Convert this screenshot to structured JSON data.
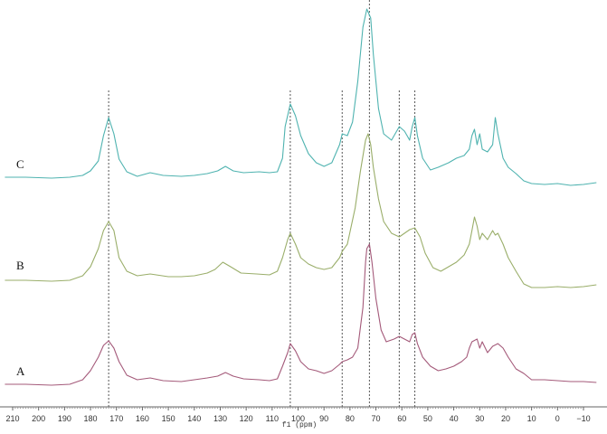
{
  "chart_data": {
    "type": "line",
    "title": "",
    "xlabel": "f1 (ppm)",
    "ylabel": "",
    "x_reversed": true,
    "xlim": [
      -15,
      213
    ],
    "x_ticks": [
      210,
      200,
      190,
      180,
      170,
      160,
      150,
      140,
      130,
      120,
      110,
      100,
      90,
      80,
      70,
      60,
      50,
      40,
      30,
      20,
      10,
      0,
      -10
    ],
    "grid": false,
    "legend": "none",
    "reference_lines_ppm": [
      173,
      103,
      83,
      72.5,
      61,
      55
    ],
    "series": [
      {
        "name": "C",
        "color": "#4fb3b0",
        "baseline": 196,
        "points": [
          [
            213,
            196
          ],
          [
            205,
            196
          ],
          [
            195,
            197
          ],
          [
            188,
            196
          ],
          [
            183,
            194
          ],
          [
            180,
            189
          ],
          [
            177,
            178
          ],
          [
            175,
            150
          ],
          [
            173,
            130
          ],
          [
            171,
            148
          ],
          [
            169,
            176
          ],
          [
            166,
            190
          ],
          [
            162,
            195
          ],
          [
            157,
            191
          ],
          [
            152,
            194
          ],
          [
            145,
            195
          ],
          [
            140,
            194
          ],
          [
            135,
            192
          ],
          [
            131,
            189
          ],
          [
            128,
            184
          ],
          [
            125,
            189
          ],
          [
            121,
            191
          ],
          [
            115,
            190
          ],
          [
            111,
            191
          ],
          [
            108,
            190
          ],
          [
            106,
            175
          ],
          [
            105,
            140
          ],
          [
            103,
            115
          ],
          [
            101,
            128
          ],
          [
            99,
            150
          ],
          [
            96,
            170
          ],
          [
            93,
            180
          ],
          [
            90,
            184
          ],
          [
            87,
            180
          ],
          [
            84,
            160
          ],
          [
            83,
            148
          ],
          [
            81,
            150
          ],
          [
            79,
            135
          ],
          [
            77,
            90
          ],
          [
            75,
            30
          ],
          [
            73.5,
            10
          ],
          [
            72,
            20
          ],
          [
            71,
            60
          ],
          [
            69,
            120
          ],
          [
            67,
            148
          ],
          [
            64,
            155
          ],
          [
            61,
            140
          ],
          [
            59,
            145
          ],
          [
            58,
            150
          ],
          [
            57,
            155
          ],
          [
            56,
            140
          ],
          [
            55,
            130
          ],
          [
            54,
            150
          ],
          [
            52,
            175
          ],
          [
            49,
            188
          ],
          [
            46,
            185
          ],
          [
            42,
            180
          ],
          [
            39,
            175
          ],
          [
            36,
            172
          ],
          [
            34,
            165
          ],
          [
            33,
            150
          ],
          [
            32,
            143
          ],
          [
            31,
            160
          ],
          [
            30,
            148
          ],
          [
            29,
            165
          ],
          [
            27,
            168
          ],
          [
            25,
            160
          ],
          [
            24,
            130
          ],
          [
            23,
            148
          ],
          [
            21,
            175
          ],
          [
            19,
            185
          ],
          [
            16,
            192
          ],
          [
            13,
            200
          ],
          [
            10,
            203
          ],
          [
            5,
            204
          ],
          [
            0,
            203
          ],
          [
            -5,
            205
          ],
          [
            -10,
            204
          ],
          [
            -15,
            202
          ]
        ]
      },
      {
        "name": "B",
        "color": "#9aae6a",
        "baseline": 308,
        "points": [
          [
            213,
            310
          ],
          [
            205,
            310
          ],
          [
            195,
            311
          ],
          [
            188,
            310
          ],
          [
            183,
            305
          ],
          [
            180,
            295
          ],
          [
            177,
            275
          ],
          [
            175,
            255
          ],
          [
            173,
            245
          ],
          [
            171,
            255
          ],
          [
            169,
            285
          ],
          [
            166,
            300
          ],
          [
            162,
            305
          ],
          [
            157,
            303
          ],
          [
            150,
            306
          ],
          [
            145,
            306
          ],
          [
            140,
            305
          ],
          [
            135,
            302
          ],
          [
            132,
            298
          ],
          [
            129,
            290
          ],
          [
            126,
            295
          ],
          [
            122,
            302
          ],
          [
            116,
            303
          ],
          [
            111,
            304
          ],
          [
            108,
            300
          ],
          [
            106,
            285
          ],
          [
            104,
            265
          ],
          [
            103,
            258
          ],
          [
            101,
            270
          ],
          [
            99,
            285
          ],
          [
            96,
            292
          ],
          [
            93,
            296
          ],
          [
            90,
            298
          ],
          [
            87,
            296
          ],
          [
            84,
            285
          ],
          [
            83,
            278
          ],
          [
            81,
            270
          ],
          [
            78,
            230
          ],
          [
            76,
            190
          ],
          [
            74,
            155
          ],
          [
            73,
            148
          ],
          [
            72,
            160
          ],
          [
            71,
            185
          ],
          [
            69,
            220
          ],
          [
            67,
            245
          ],
          [
            64,
            258
          ],
          [
            61,
            262
          ],
          [
            59,
            258
          ],
          [
            57,
            254
          ],
          [
            55,
            252
          ],
          [
            53,
            262
          ],
          [
            51,
            280
          ],
          [
            48,
            296
          ],
          [
            45,
            300
          ],
          [
            42,
            295
          ],
          [
            39,
            290
          ],
          [
            36,
            282
          ],
          [
            34,
            270
          ],
          [
            33,
            255
          ],
          [
            32,
            240
          ],
          [
            31,
            250
          ],
          [
            30,
            265
          ],
          [
            29,
            258
          ],
          [
            27,
            265
          ],
          [
            25,
            255
          ],
          [
            24,
            260
          ],
          [
            23,
            258
          ],
          [
            21,
            270
          ],
          [
            19,
            285
          ],
          [
            16,
            300
          ],
          [
            13,
            314
          ],
          [
            10,
            318
          ],
          [
            5,
            318
          ],
          [
            0,
            317
          ],
          [
            -5,
            318
          ],
          [
            -10,
            317
          ],
          [
            -15,
            315
          ]
        ]
      },
      {
        "name": "A",
        "color": "#a45a7a",
        "baseline": 425,
        "points": [
          [
            213,
            425
          ],
          [
            205,
            425
          ],
          [
            195,
            426
          ],
          [
            188,
            425
          ],
          [
            183,
            420
          ],
          [
            180,
            410
          ],
          [
            177,
            395
          ],
          [
            175,
            382
          ],
          [
            173,
            377
          ],
          [
            171,
            385
          ],
          [
            169,
            400
          ],
          [
            166,
            415
          ],
          [
            162,
            420
          ],
          [
            157,
            418
          ],
          [
            152,
            421
          ],
          [
            145,
            422
          ],
          [
            140,
            420
          ],
          [
            135,
            418
          ],
          [
            131,
            416
          ],
          [
            128,
            412
          ],
          [
            125,
            416
          ],
          [
            121,
            419
          ],
          [
            115,
            420
          ],
          [
            111,
            421
          ],
          [
            108,
            419
          ],
          [
            106,
            405
          ],
          [
            104,
            390
          ],
          [
            103,
            380
          ],
          [
            101,
            388
          ],
          [
            99,
            400
          ],
          [
            96,
            408
          ],
          [
            93,
            410
          ],
          [
            90,
            413
          ],
          [
            87,
            410
          ],
          [
            84,
            403
          ],
          [
            83,
            400
          ],
          [
            81,
            398
          ],
          [
            79,
            395
          ],
          [
            77,
            385
          ],
          [
            75,
            340
          ],
          [
            74,
            290
          ],
          [
            73.5,
            275
          ],
          [
            72.5,
            270
          ],
          [
            71.5,
            290
          ],
          [
            70,
            330
          ],
          [
            68,
            365
          ],
          [
            66,
            378
          ],
          [
            63,
            375
          ],
          [
            61,
            372
          ],
          [
            59,
            375
          ],
          [
            57,
            378
          ],
          [
            56,
            370
          ],
          [
            55,
            368
          ],
          [
            54,
            380
          ],
          [
            52,
            395
          ],
          [
            49,
            405
          ],
          [
            46,
            410
          ],
          [
            43,
            408
          ],
          [
            40,
            405
          ],
          [
            37,
            400
          ],
          [
            35,
            395
          ],
          [
            34,
            385
          ],
          [
            33,
            378
          ],
          [
            31,
            375
          ],
          [
            30,
            385
          ],
          [
            29,
            378
          ],
          [
            27,
            390
          ],
          [
            25,
            383
          ],
          [
            23,
            380
          ],
          [
            21,
            385
          ],
          [
            19,
            395
          ],
          [
            16,
            408
          ],
          [
            13,
            413
          ],
          [
            10,
            420
          ],
          [
            5,
            420
          ],
          [
            0,
            421
          ],
          [
            -5,
            422
          ],
          [
            -10,
            422
          ],
          [
            -15,
            423
          ]
        ]
      }
    ]
  }
}
